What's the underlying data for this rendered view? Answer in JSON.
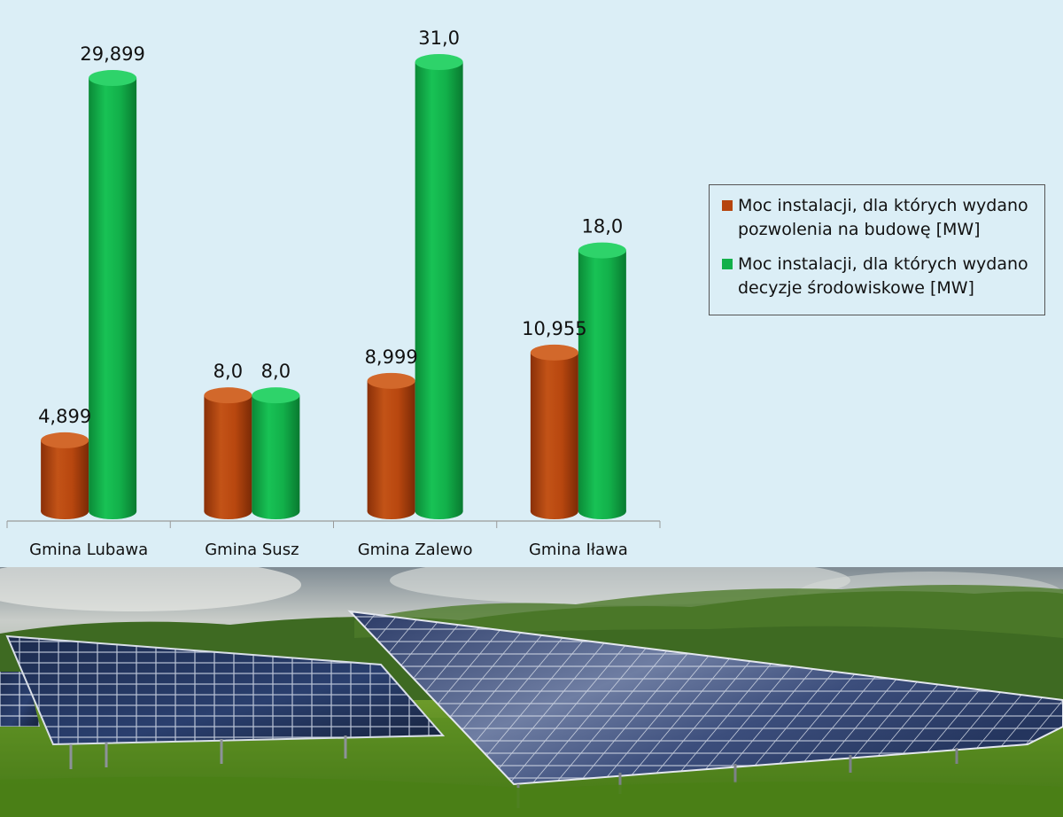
{
  "chart_data": {
    "type": "bar",
    "categories": [
      "Gmina Lubawa",
      "Gmina Susz",
      "Gmina Zalewo",
      "Gmina Iława"
    ],
    "series": [
      {
        "name": "Moc instalacji, dla których wydano pozwolenia na budowę [MW]",
        "values": [
          4.899,
          8.0,
          8.999,
          10.955
        ],
        "labels": [
          "4,899",
          "8,0",
          "8,999",
          "10,955"
        ],
        "color": "#b6450f"
      },
      {
        "name": "Moc instalacji, dla których wydano decyzje środowiskowe [MW]",
        "values": [
          29.899,
          8.0,
          31.0,
          18.0
        ],
        "labels": [
          "29,899",
          "8,0",
          "31,0",
          "18,0"
        ],
        "color": "#12b04a"
      }
    ],
    "ylim": [
      0,
      31
    ],
    "legend": "right",
    "grid": false
  },
  "photo": {
    "subject": "solar-panel-field"
  }
}
